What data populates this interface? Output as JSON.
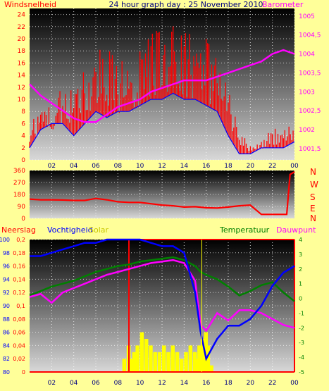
{
  "header": {
    "left": "Windsnelheid",
    "center": "24 hour graph day : 25 November 2010",
    "right": "Barometer"
  },
  "colors": {
    "background": "#ffff99",
    "wind": "#ff0000",
    "wind_avg": "#0000ff",
    "barometer": "#ff00ff",
    "direction": "#ff0000",
    "rain": "#ff0000",
    "humidity": "#0000ff",
    "temperature": "#008000",
    "dewpoint": "#ff00ff",
    "solar": "#ffff00",
    "xtick": "#000080"
  },
  "x_ticks": [
    "02",
    "04",
    "06",
    "08",
    "10",
    "12",
    "14",
    "16",
    "18",
    "20",
    "22",
    "00"
  ],
  "chart_data": [
    {
      "type": "line",
      "name": "wind_barometer",
      "ylabel_left": "Windsnelheid",
      "ylabel_right": "Barometer",
      "y_left_ticks": [
        "0",
        "2",
        "4",
        "6",
        "8",
        "10",
        "12",
        "14",
        "16",
        "18",
        "20",
        "22",
        "24"
      ],
      "y_left_range": [
        0,
        25
      ],
      "y_right_ticks": [
        "1001,5",
        "1002",
        "1002,5",
        "1003",
        "1003,5",
        "1004",
        "1004,5",
        "1005"
      ],
      "y_right_range": [
        1001.2,
        1005.2
      ],
      "x": [
        0,
        1,
        2,
        3,
        4,
        5,
        6,
        7,
        8,
        9,
        10,
        11,
        12,
        13,
        14,
        15,
        16,
        17,
        18,
        19,
        20,
        21,
        22,
        23,
        24
      ],
      "series": [
        {
          "role": "gust",
          "values": [
            5,
            6,
            8,
            9,
            10,
            12,
            14,
            15,
            13,
            12,
            14,
            16,
            17,
            17,
            16,
            17,
            16,
            14,
            9,
            4,
            2,
            3,
            4,
            4,
            5
          ]
        },
        {
          "role": "average",
          "values": [
            2,
            5,
            6,
            6,
            4,
            6,
            8,
            7,
            8,
            8,
            9,
            10,
            10,
            11,
            10,
            10,
            9,
            8,
            4,
            1,
            1,
            2,
            2,
            2,
            3
          ]
        },
        {
          "role": "barometer",
          "values": [
            1003.2,
            1002.9,
            1002.7,
            1002.5,
            1002.3,
            1002.2,
            1002.2,
            1002.4,
            1002.6,
            1002.7,
            1002.8,
            1003.0,
            1003.1,
            1003.2,
            1003.3,
            1003.3,
            1003.3,
            1003.4,
            1003.5,
            1003.6,
            1003.7,
            1003.8,
            1004.0,
            1004.1,
            1004.0
          ]
        }
      ],
      "grid": true
    },
    {
      "type": "line",
      "name": "wind_direction",
      "y_left_ticks": [
        "0",
        "90",
        "180",
        "270",
        "360"
      ],
      "y_range": [
        0,
        360
      ],
      "compass_labels": [
        "N",
        "W",
        "S",
        "E",
        "N"
      ],
      "x": [
        0,
        1,
        2,
        3,
        4,
        5,
        6,
        7,
        8,
        9,
        10,
        11,
        12,
        13,
        14,
        15,
        16,
        17,
        18,
        19,
        20,
        21,
        22,
        23,
        23.3,
        23.6,
        24
      ],
      "values": [
        145,
        140,
        140,
        138,
        135,
        135,
        150,
        140,
        125,
        120,
        120,
        110,
        100,
        95,
        85,
        88,
        80,
        78,
        85,
        95,
        100,
        30,
        30,
        30,
        30,
        330,
        350
      ],
      "grid": true
    },
    {
      "type": "line",
      "name": "rain_humidity_temperature",
      "labels": {
        "rain": "Neerslag",
        "humidity": "Vochtigheid",
        "solar": "Solar",
        "temperature": "Temperatuur",
        "dewpoint": "Dauwpunt"
      },
      "y_left1_ticks": [
        "0",
        "0,02",
        "0,04",
        "0,06",
        "0,08",
        "0,1",
        "0,12",
        "0,14",
        "0,16",
        "0,18",
        "0,2"
      ],
      "y_left1_range": [
        0,
        0.2
      ],
      "y_left2_ticks": [
        "80",
        "82",
        "84",
        "86",
        "88",
        "90",
        "92",
        "94",
        "96",
        "98",
        "100"
      ],
      "y_left2_range": [
        80,
        100
      ],
      "y_right_ticks": [
        "-5",
        "-4",
        "-3",
        "-2",
        "-1",
        "0",
        "1",
        "2",
        "3",
        "4"
      ],
      "y_right_range": [
        -5,
        4
      ],
      "x": [
        0,
        1,
        2,
        3,
        4,
        5,
        6,
        7,
        8,
        9,
        10,
        11,
        12,
        13,
        14,
        15,
        15.5,
        16,
        17,
        18,
        19,
        20,
        21,
        22,
        23,
        24
      ],
      "series": [
        {
          "role": "humidity",
          "values": [
            97.5,
            97.5,
            98,
            98.5,
            99,
            99.5,
            99.5,
            100,
            100,
            100,
            100,
            99.5,
            99,
            99,
            98,
            92,
            86,
            82,
            85,
            87,
            87,
            88,
            90,
            93,
            95,
            96
          ]
        },
        {
          "role": "temperature",
          "values": [
            0.2,
            0.5,
            0.8,
            1.0,
            1.2,
            1.5,
            1.8,
            2.0,
            2.2,
            2.3,
            2.5,
            2.6,
            2.7,
            2.8,
            2.6,
            2.2,
            1.8,
            1.6,
            1.3,
            0.8,
            0.2,
            0.5,
            0.9,
            1.1,
            0.4,
            -0.2
          ]
        },
        {
          "role": "dewpoint",
          "values": [
            0.1,
            0.3,
            -0.3,
            0.4,
            0.7,
            1.0,
            1.3,
            1.6,
            1.8,
            2.0,
            2.2,
            2.4,
            2.5,
            2.6,
            2.4,
            1.2,
            -1.8,
            -2.2,
            -1.0,
            -1.5,
            -0.8,
            -0.8,
            -1.0,
            -1.4,
            -1.8,
            -2.0
          ]
        },
        {
          "role": "rain_total",
          "x": [
            0,
            9,
            9,
            24
          ],
          "values": [
            0,
            0,
            0.2,
            0.2
          ]
        }
      ],
      "solar": {
        "x": [
          8.4,
          8.8,
          9.0,
          9.3,
          9.6,
          10.0,
          10.4,
          10.8,
          11.2,
          11.6,
          12.0,
          12.4,
          12.8,
          13.2,
          13.6,
          14.0,
          14.4,
          14.8,
          15.0,
          15.2,
          15.5,
          15.8,
          16.0,
          16.3
        ],
        "values": [
          0.02,
          0.04,
          0.02,
          0.03,
          0.04,
          0.06,
          0.05,
          0.04,
          0.03,
          0.03,
          0.04,
          0.03,
          0.04,
          0.03,
          0.02,
          0.03,
          0.04,
          0.03,
          0.02,
          0.04,
          0.05,
          0.06,
          0.04,
          0.01
        ]
      },
      "grid": true
    }
  ]
}
